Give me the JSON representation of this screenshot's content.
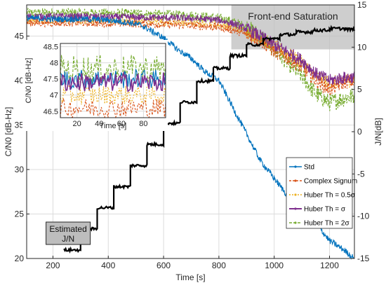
{
  "chart_data": {
    "type": "line",
    "xlabel": "Time [s]",
    "ylabel_left": "C/N0 [dB-Hz]",
    "ylabel_right": "J/N[dB]",
    "xlim": [
      105,
      1290
    ],
    "ylim_left": [
      20,
      48.5
    ],
    "ylim_right": [
      -15,
      15
    ],
    "x_ticks": [
      200,
      400,
      600,
      800,
      1000,
      1200
    ],
    "y_ticks_left": [
      20,
      25,
      30,
      35,
      40,
      45
    ],
    "y_ticks_right": [
      -15,
      -10,
      -5,
      0,
      5,
      10,
      15
    ],
    "grid": true,
    "legend_position": "right-center",
    "colors": {
      "std": "#0072BD",
      "complex_signum": "#D95319",
      "huber_05": "#EDB120",
      "huber_1": "#7E2F8E",
      "huber_2": "#77AC30",
      "jn": "#000000"
    },
    "series": [
      {
        "name": "Std",
        "x": [
          105,
          200,
          300,
          400,
          480,
          520,
          560,
          600,
          650,
          700,
          750,
          800,
          850,
          900,
          950,
          1000,
          1050,
          1100,
          1150,
          1200,
          1250,
          1290
        ],
        "y": [
          47.0,
          46.9,
          46.9,
          46.8,
          46.5,
          46.2,
          45.5,
          44.8,
          43.5,
          42.5,
          41.0,
          40.0,
          37.0,
          34.0,
          31.0,
          29.0,
          27.0,
          25.5,
          24.0,
          22.0,
          21.0,
          20.0
        ]
      },
      {
        "name": "Complex Signum",
        "x": [
          105,
          300,
          500,
          700,
          800,
          850,
          900,
          950,
          1000,
          1050,
          1100,
          1150,
          1200,
          1250,
          1290
        ],
        "y": [
          46.5,
          46.5,
          46.4,
          46.2,
          46.0,
          45.7,
          45.2,
          44.5,
          43.3,
          42.5,
          41.5,
          40.0,
          39.0,
          39.8,
          40.0
        ]
      },
      {
        "name": "Huber Th = 0.5σ",
        "x": [
          105,
          300,
          500,
          700,
          800,
          850,
          900,
          950,
          1000,
          1050,
          1100,
          1150,
          1200,
          1250,
          1290
        ],
        "y": [
          46.8,
          46.8,
          46.7,
          46.5,
          46.3,
          46.0,
          45.5,
          44.8,
          43.8,
          43.0,
          42.0,
          40.5,
          39.7,
          40.0,
          40.1
        ]
      },
      {
        "name": "Huber Th = σ",
        "x": [
          105,
          300,
          500,
          700,
          800,
          850,
          900,
          950,
          1000,
          1050,
          1100,
          1150,
          1200,
          1250,
          1290
        ],
        "y": [
          47.2,
          47.2,
          47.1,
          47.0,
          46.8,
          46.4,
          45.8,
          45.0,
          44.0,
          43.2,
          42.3,
          40.8,
          40.0,
          40.3,
          40.4
        ]
      },
      {
        "name": "Huber Th = 2σ",
        "x": [
          105,
          300,
          500,
          700,
          800,
          850,
          900,
          950,
          1000,
          1050,
          1100,
          1150,
          1200,
          1250,
          1290
        ],
        "y": [
          47.6,
          47.6,
          47.5,
          47.3,
          47.0,
          46.6,
          46.0,
          45.0,
          43.5,
          42.0,
          40.5,
          38.5,
          37.5,
          38.0,
          38.3
        ]
      },
      {
        "name": "Estimated J/N",
        "axis": "right",
        "x": [
          240,
          300,
          360,
          420,
          480,
          540,
          600,
          660,
          720,
          780,
          840,
          900,
          960,
          1020,
          1080,
          1140,
          1200,
          1260
        ],
        "y": [
          -14.0,
          -11.5,
          -9.0,
          -6.5,
          -4.0,
          -1.5,
          1.0,
          3.5,
          6.0,
          7.5,
          9.0,
          10.3,
          11.0,
          11.5,
          11.8,
          12.0,
          12.2,
          12.1
        ]
      }
    ],
    "inset": {
      "xlabel": "Time [s]",
      "ylabel": "C/N0 [dB-Hz]",
      "xlim": [
        5,
        100
      ],
      "ylim": [
        46.3,
        48.6
      ],
      "x_ticks": [
        20,
        40,
        60,
        80
      ],
      "y_ticks": [
        46.5,
        47,
        47.5,
        48,
        48.5
      ],
      "series": [
        {
          "name": "Complex Signum",
          "mean": 46.6
        },
        {
          "name": "Huber Th = 0.5σ",
          "mean": 47.0
        },
        {
          "name": "Huber Th = σ",
          "mean": 47.4
        },
        {
          "name": "Huber Th = 2σ",
          "mean": 47.8
        },
        {
          "name": "Std",
          "mean": 47.5
        }
      ]
    },
    "annotations": [
      {
        "text": "Front-end Saturation",
        "region_x": [
          845,
          1290
        ],
        "region_y_left": [
          43.5,
          48.5
        ]
      },
      {
        "text_lines": [
          "Estimated",
          "J/N"
        ],
        "points_to": "Estimated J/N"
      }
    ]
  }
}
